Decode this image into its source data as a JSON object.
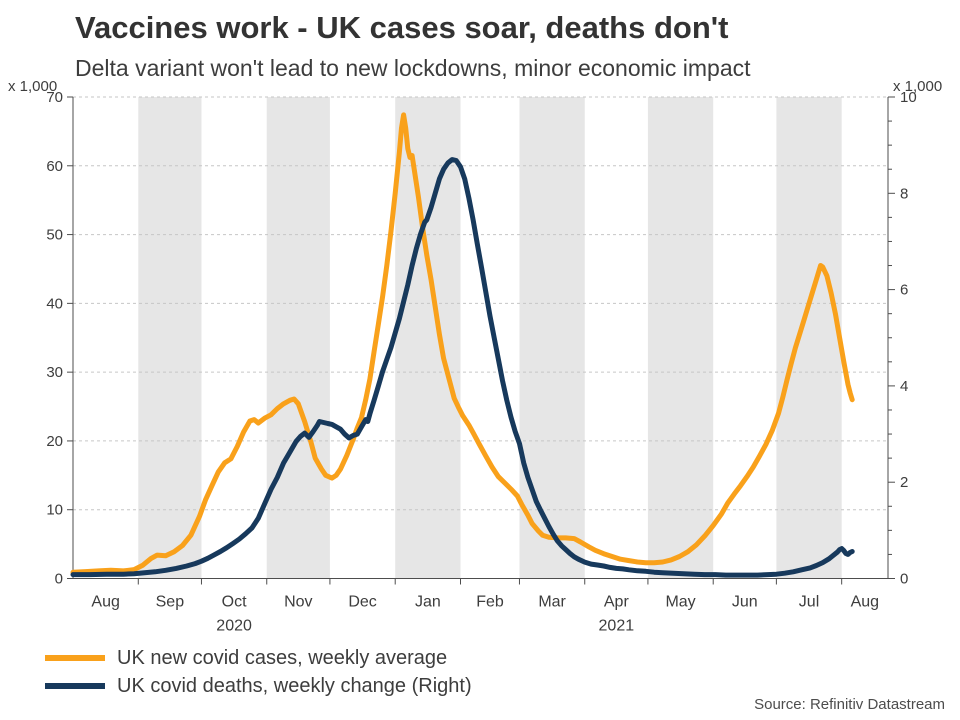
{
  "title": "Vaccines work - UK cases soar, deaths don't",
  "subtitle": "Delta variant won't lead to new lockdowns, minor economic impact",
  "source": "Source: Refinitiv Datastream",
  "left_axis_unit": "x 1,000",
  "right_axis_unit": "x 1,000",
  "legend": [
    {
      "label": "UK new covid cases, weekly average",
      "color": "#F9A11B"
    },
    {
      "label": "UK covid deaths, weekly change (Right)",
      "color": "#17395C"
    }
  ],
  "colors": {
    "cases_line": "#F9A11B",
    "deaths_line": "#17395C",
    "shaded_band": "#E6E6E6",
    "gridline": "#C6C6C6",
    "axis": "#4D4D4D",
    "tick_text": "#3D3D3D"
  },
  "chart_data": {
    "type": "line",
    "title": "Vaccines work - UK cases soar, deaths don't",
    "subtitle": "Delta variant won't lead to new lockdowns, minor economic impact",
    "x_unit": "days since 1 Aug 2020",
    "x_range": [
      0,
      387
    ],
    "grid": "horizontal-dashed",
    "legend_position": "bottom-left",
    "left_axis": {
      "label": "x 1,000",
      "range": [
        0,
        70
      ],
      "ticks": [
        0,
        10,
        20,
        30,
        40,
        50,
        60,
        70
      ]
    },
    "right_axis": {
      "label": "x 1,000",
      "range": [
        0,
        10
      ],
      "ticks": [
        0,
        2,
        4,
        6,
        8,
        10
      ],
      "minor_tick_step": 0.5
    },
    "month_boundaries_days": [
      31,
      61,
      92,
      122,
      153,
      184,
      212,
      243,
      273,
      304,
      334,
      365
    ],
    "shaded_bands_days": [
      [
        31,
        61
      ],
      [
        92,
        122
      ],
      [
        153,
        184
      ],
      [
        212,
        243
      ],
      [
        273,
        304
      ],
      [
        334,
        365
      ]
    ],
    "month_labels": [
      {
        "label": "Aug",
        "day": 15.5
      },
      {
        "label": "Sep",
        "day": 46
      },
      {
        "label": "Oct",
        "day": 76.5
      },
      {
        "label": "Nov",
        "day": 107
      },
      {
        "label": "Dec",
        "day": 137.5
      },
      {
        "label": "Jan",
        "day": 168.5
      },
      {
        "label": "Feb",
        "day": 198
      },
      {
        "label": "Mar",
        "day": 227.5
      },
      {
        "label": "Apr",
        "day": 258
      },
      {
        "label": "May",
        "day": 288.5
      },
      {
        "label": "Jun",
        "day": 319
      },
      {
        "label": "Jul",
        "day": 349.5
      },
      {
        "label": "Aug",
        "day": 376
      }
    ],
    "year_labels": [
      {
        "label": "2020",
        "day": 76.5
      },
      {
        "label": "2021",
        "day": 258
      }
    ],
    "series": [
      {
        "name": "UK new covid cases, weekly average",
        "axis": "left",
        "color": "#F9A11B",
        "points": [
          [
            0,
            0.9
          ],
          [
            6,
            1.0
          ],
          [
            12,
            1.1
          ],
          [
            18,
            1.2
          ],
          [
            24,
            1.1
          ],
          [
            29,
            1.3
          ],
          [
            33,
            1.9
          ],
          [
            37,
            2.9
          ],
          [
            40,
            3.4
          ],
          [
            44,
            3.3
          ],
          [
            48,
            3.9
          ],
          [
            52,
            4.8
          ],
          [
            56,
            6.3
          ],
          [
            60,
            9.0
          ],
          [
            63,
            11.5
          ],
          [
            66,
            13.5
          ],
          [
            69,
            15.5
          ],
          [
            72,
            16.8
          ],
          [
            75,
            17.4
          ],
          [
            78,
            19.2
          ],
          [
            81,
            21.3
          ],
          [
            84,
            22.9
          ],
          [
            86,
            23.1
          ],
          [
            88,
            22.6
          ],
          [
            91,
            23.3
          ],
          [
            94,
            23.8
          ],
          [
            97,
            24.7
          ],
          [
            100,
            25.4
          ],
          [
            103,
            25.9
          ],
          [
            105,
            26.1
          ],
          [
            107,
            25.4
          ],
          [
            110,
            22.8
          ],
          [
            113,
            19.8
          ],
          [
            115,
            17.5
          ],
          [
            118,
            15.9
          ],
          [
            120,
            15.0
          ],
          [
            123,
            14.6
          ],
          [
            125,
            15.0
          ],
          [
            127,
            15.9
          ],
          [
            130,
            17.9
          ],
          [
            133,
            20.2
          ],
          [
            135,
            21.9
          ],
          [
            137,
            23.4
          ],
          [
            139,
            26.0
          ],
          [
            141,
            29.0
          ],
          [
            143,
            33.0
          ],
          [
            145,
            37.0
          ],
          [
            147,
            41.0
          ],
          [
            149,
            45.5
          ],
          [
            151,
            50.5
          ],
          [
            153,
            56.0
          ],
          [
            155,
            62.0
          ],
          [
            156,
            65.5
          ],
          [
            157,
            67.4
          ],
          [
            158,
            65.5
          ],
          [
            159,
            62.5
          ],
          [
            160,
            61.2
          ],
          [
            161,
            61.5
          ],
          [
            162,
            59.5
          ],
          [
            164,
            55.5
          ],
          [
            166,
            51.0
          ],
          [
            168,
            47.0
          ],
          [
            170,
            43.5
          ],
          [
            172,
            39.5
          ],
          [
            174,
            35.5
          ],
          [
            176,
            32.0
          ],
          [
            179,
            28.5
          ],
          [
            181,
            26.2
          ],
          [
            183,
            24.9
          ],
          [
            185,
            23.7
          ],
          [
            188,
            22.3
          ],
          [
            190,
            21.2
          ],
          [
            193,
            19.5
          ],
          [
            196,
            17.8
          ],
          [
            199,
            16.2
          ],
          [
            202,
            14.8
          ],
          [
            205,
            13.9
          ],
          [
            208,
            13.0
          ],
          [
            211,
            12.0
          ],
          [
            213,
            10.8
          ],
          [
            216,
            9.2
          ],
          [
            218,
            8.0
          ],
          [
            221,
            6.9
          ],
          [
            223,
            6.3
          ],
          [
            226,
            6.0
          ],
          [
            230,
            5.9
          ],
          [
            234,
            5.9
          ],
          [
            238,
            5.8
          ],
          [
            241,
            5.3
          ],
          [
            245,
            4.6
          ],
          [
            248,
            4.1
          ],
          [
            252,
            3.6
          ],
          [
            256,
            3.2
          ],
          [
            260,
            2.8
          ],
          [
            264,
            2.6
          ],
          [
            268,
            2.4
          ],
          [
            272,
            2.3
          ],
          [
            276,
            2.3
          ],
          [
            280,
            2.4
          ],
          [
            284,
            2.7
          ],
          [
            288,
            3.2
          ],
          [
            292,
            3.9
          ],
          [
            296,
            4.9
          ],
          [
            300,
            6.2
          ],
          [
            304,
            7.7
          ],
          [
            308,
            9.4
          ],
          [
            311,
            11.0
          ],
          [
            314,
            12.3
          ],
          [
            317,
            13.5
          ],
          [
            320,
            14.8
          ],
          [
            323,
            16.2
          ],
          [
            326,
            17.8
          ],
          [
            329,
            19.5
          ],
          [
            332,
            21.5
          ],
          [
            335,
            24.0
          ],
          [
            337,
            26.3
          ],
          [
            339,
            28.8
          ],
          [
            341,
            31.2
          ],
          [
            343,
            33.5
          ],
          [
            345,
            35.5
          ],
          [
            347,
            37.5
          ],
          [
            349,
            39.5
          ],
          [
            351,
            41.5
          ],
          [
            353,
            43.5
          ],
          [
            355,
            45.5
          ],
          [
            356,
            45.3
          ],
          [
            358,
            44.0
          ],
          [
            360,
            41.5
          ],
          [
            362,
            38.5
          ],
          [
            364,
            35.0
          ],
          [
            366,
            31.5
          ],
          [
            368,
            28.2
          ],
          [
            369,
            27.0
          ],
          [
            370,
            26.0
          ]
        ]
      },
      {
        "name": "UK covid deaths, weekly change (Right)",
        "axis": "right",
        "color": "#17395C",
        "points": [
          [
            0,
            0.08
          ],
          [
            8,
            0.08
          ],
          [
            16,
            0.09
          ],
          [
            24,
            0.09
          ],
          [
            29,
            0.1
          ],
          [
            34,
            0.12
          ],
          [
            39,
            0.14
          ],
          [
            44,
            0.17
          ],
          [
            49,
            0.21
          ],
          [
            54,
            0.26
          ],
          [
            58,
            0.31
          ],
          [
            61,
            0.36
          ],
          [
            64,
            0.42
          ],
          [
            67,
            0.49
          ],
          [
            70,
            0.56
          ],
          [
            73,
            0.64
          ],
          [
            76,
            0.73
          ],
          [
            79,
            0.82
          ],
          [
            82,
            0.93
          ],
          [
            85,
            1.05
          ],
          [
            88,
            1.25
          ],
          [
            91,
            1.55
          ],
          [
            94,
            1.85
          ],
          [
            97,
            2.1
          ],
          [
            100,
            2.4
          ],
          [
            102,
            2.55
          ],
          [
            104,
            2.7
          ],
          [
            106,
            2.85
          ],
          [
            108,
            2.95
          ],
          [
            110,
            3.02
          ],
          [
            112,
            2.93
          ],
          [
            114,
            3.05
          ],
          [
            116,
            3.18
          ],
          [
            117,
            3.26
          ],
          [
            119,
            3.24
          ],
          [
            121,
            3.22
          ],
          [
            123,
            3.2
          ],
          [
            125,
            3.15
          ],
          [
            127,
            3.1
          ],
          [
            129,
            3.0
          ],
          [
            131,
            2.92
          ],
          [
            133,
            2.97
          ],
          [
            135,
            3.0
          ],
          [
            137,
            3.15
          ],
          [
            139,
            3.3
          ],
          [
            140,
            3.26
          ],
          [
            141,
            3.42
          ],
          [
            143,
            3.7
          ],
          [
            145,
            4.0
          ],
          [
            147,
            4.3
          ],
          [
            149,
            4.55
          ],
          [
            151,
            4.8
          ],
          [
            153,
            5.1
          ],
          [
            155,
            5.4
          ],
          [
            157,
            5.75
          ],
          [
            159,
            6.1
          ],
          [
            161,
            6.5
          ],
          [
            163,
            6.85
          ],
          [
            165,
            7.15
          ],
          [
            167,
            7.4
          ],
          [
            168,
            7.45
          ],
          [
            170,
            7.7
          ],
          [
            172,
            8.0
          ],
          [
            174,
            8.3
          ],
          [
            176,
            8.5
          ],
          [
            178,
            8.63
          ],
          [
            180,
            8.7
          ],
          [
            182,
            8.68
          ],
          [
            184,
            8.55
          ],
          [
            186,
            8.3
          ],
          [
            188,
            7.9
          ],
          [
            190,
            7.45
          ],
          [
            192,
            6.95
          ],
          [
            194,
            6.45
          ],
          [
            196,
            5.95
          ],
          [
            198,
            5.45
          ],
          [
            200,
            5.0
          ],
          [
            202,
            4.55
          ],
          [
            204,
            4.1
          ],
          [
            206,
            3.7
          ],
          [
            208,
            3.35
          ],
          [
            210,
            3.05
          ],
          [
            212,
            2.8
          ],
          [
            214,
            2.4
          ],
          [
            216,
            2.1
          ],
          [
            218,
            1.85
          ],
          [
            220,
            1.6
          ],
          [
            222,
            1.42
          ],
          [
            224,
            1.25
          ],
          [
            226,
            1.08
          ],
          [
            228,
            0.92
          ],
          [
            230,
            0.78
          ],
          [
            232,
            0.68
          ],
          [
            234,
            0.6
          ],
          [
            236,
            0.52
          ],
          [
            238,
            0.45
          ],
          [
            240,
            0.4
          ],
          [
            243,
            0.34
          ],
          [
            246,
            0.3
          ],
          [
            249,
            0.28
          ],
          [
            252,
            0.26
          ],
          [
            255,
            0.23
          ],
          [
            258,
            0.21
          ],
          [
            261,
            0.2
          ],
          [
            264,
            0.18
          ],
          [
            268,
            0.16
          ],
          [
            272,
            0.15
          ],
          [
            276,
            0.13
          ],
          [
            280,
            0.12
          ],
          [
            285,
            0.11
          ],
          [
            290,
            0.1
          ],
          [
            295,
            0.09
          ],
          [
            300,
            0.08
          ],
          [
            305,
            0.08
          ],
          [
            310,
            0.07
          ],
          [
            315,
            0.07
          ],
          [
            320,
            0.07
          ],
          [
            325,
            0.07
          ],
          [
            330,
            0.08
          ],
          [
            334,
            0.09
          ],
          [
            338,
            0.11
          ],
          [
            342,
            0.14
          ],
          [
            346,
            0.18
          ],
          [
            350,
            0.22
          ],
          [
            353,
            0.27
          ],
          [
            356,
            0.33
          ],
          [
            359,
            0.41
          ],
          [
            361,
            0.48
          ],
          [
            363,
            0.55
          ],
          [
            364,
            0.6
          ],
          [
            365,
            0.62
          ],
          [
            366,
            0.58
          ],
          [
            367,
            0.52
          ],
          [
            368,
            0.5
          ],
          [
            369,
            0.54
          ],
          [
            370,
            0.56
          ]
        ]
      }
    ]
  }
}
